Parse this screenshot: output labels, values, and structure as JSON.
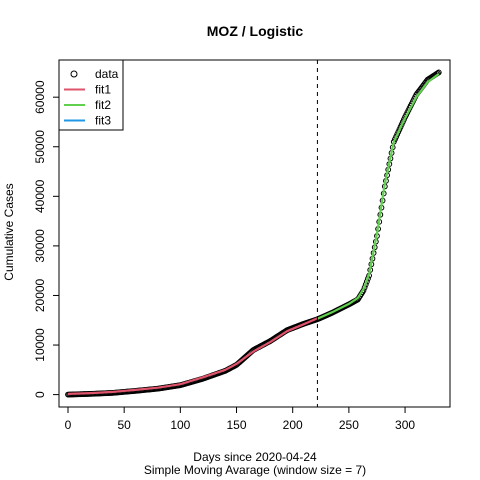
{
  "chart_data": {
    "type": "line",
    "title": "MOZ / Logistic",
    "xlabel": "Days since 2020-04-24",
    "ylabel": "Cumulative Cases",
    "subtitle": "Simple Moving Avarage (window size = 7)",
    "xlim": [
      -8,
      340
    ],
    "ylim": [
      -2500,
      67500
    ],
    "x_ticks": [
      0,
      50,
      100,
      150,
      200,
      250,
      300
    ],
    "y_ticks": [
      0,
      10000,
      20000,
      30000,
      40000,
      50000,
      60000
    ],
    "vline_x": 222,
    "legend": {
      "position": "top-left",
      "entries": [
        {
          "label": "data",
          "symbol": "circle",
          "color": "#000000"
        },
        {
          "label": "fit1",
          "symbol": "line",
          "color": "#DF536B"
        },
        {
          "label": "fit2",
          "symbol": "line",
          "color": "#61D04F"
        },
        {
          "label": "fit3",
          "symbol": "line",
          "color": "#2297E6"
        }
      ]
    },
    "data_points": {
      "x": [
        0,
        20,
        40,
        60,
        80,
        100,
        120,
        140,
        150,
        165,
        180,
        195,
        210,
        222,
        235,
        250,
        258,
        263,
        268,
        275,
        282,
        290,
        300,
        310,
        320,
        330
      ],
      "y": [
        0,
        150,
        350,
        750,
        1200,
        1900,
        3200,
        4800,
        6000,
        9000,
        10800,
        13000,
        14300,
        15200,
        16500,
        18200,
        19200,
        21000,
        24000,
        32000,
        42000,
        51000,
        56000,
        60500,
        63500,
        65000
      ],
      "color": "#000000"
    },
    "series": [
      {
        "name": "fit1",
        "color": "#DF536B",
        "x": [
          0,
          20,
          40,
          60,
          80,
          100,
          120,
          140,
          150,
          165,
          180,
          195,
          210,
          222
        ],
        "y": [
          150,
          300,
          550,
          950,
          1400,
          2100,
          3500,
          5000,
          6200,
          8700,
          10600,
          12800,
          14200,
          15400
        ]
      },
      {
        "name": "fit2",
        "color": "#61D04F",
        "x": [
          222,
          235,
          250,
          258,
          263,
          268,
          275,
          282,
          290,
          300,
          310,
          320,
          330
        ],
        "y": [
          15300,
          16600,
          18300,
          19500,
          21300,
          24300,
          32500,
          42500,
          51000,
          55800,
          60000,
          63000,
          64700
        ]
      },
      {
        "name": "fit3",
        "color": "#2297E6",
        "x": [],
        "y": []
      }
    ]
  }
}
